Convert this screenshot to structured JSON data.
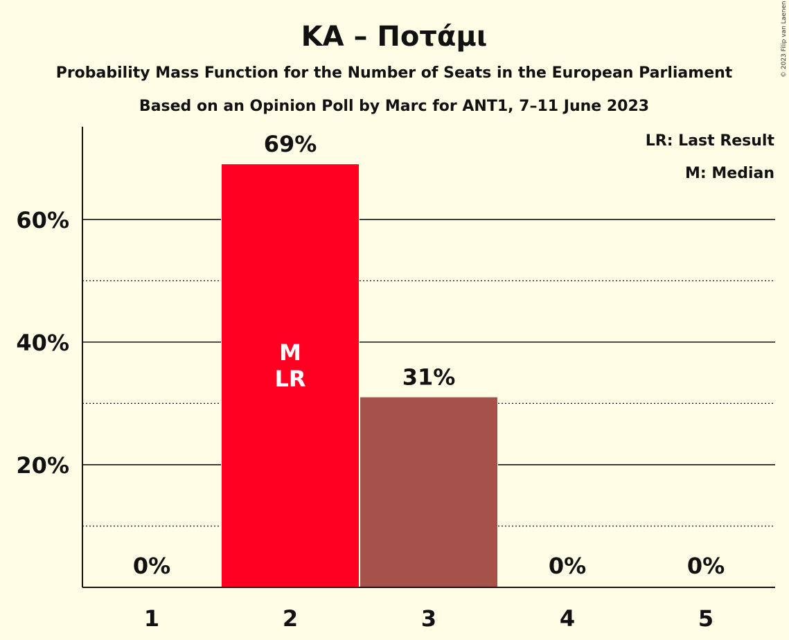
{
  "chart_data": {
    "type": "bar",
    "title": "ΚΑ – Ποτάμι",
    "subtitle": "Probability Mass Function for the Number of Seats in the European Parliament",
    "subtitle2": "Based on an Opinion Poll by Marc for ANT1, 7–11 June 2023",
    "copyright": "© 2023 Filip van Laenen",
    "categories": [
      "1",
      "2",
      "3",
      "4",
      "5"
    ],
    "values": [
      0,
      69,
      31,
      0,
      0
    ],
    "value_labels": [
      "0%",
      "69%",
      "31%",
      "0%",
      "0%"
    ],
    "bar_colors": [
      "#FF0022",
      "#FF0022",
      "#A4524A",
      "#A4524A",
      "#A4524A"
    ],
    "in_bar_labels": {
      "category": "2",
      "lines": [
        "M",
        "LR"
      ]
    },
    "y_ticks": [
      {
        "value": 20,
        "label": "20%"
      },
      {
        "value": 40,
        "label": "40%"
      },
      {
        "value": 60,
        "label": "60%"
      }
    ],
    "minor_gridlines": [
      10,
      30,
      50
    ],
    "ylim": [
      0,
      75
    ],
    "xlabel": "",
    "ylabel": "",
    "grid": true,
    "legend_position": "top-right",
    "legend": [
      {
        "label": "LR: Last Result"
      },
      {
        "label": "M: Median"
      }
    ],
    "colors": {
      "background": "#FFFDE5",
      "median_bar": "#FF0022",
      "other_bar": "#A4524A",
      "text": "#111111"
    }
  }
}
